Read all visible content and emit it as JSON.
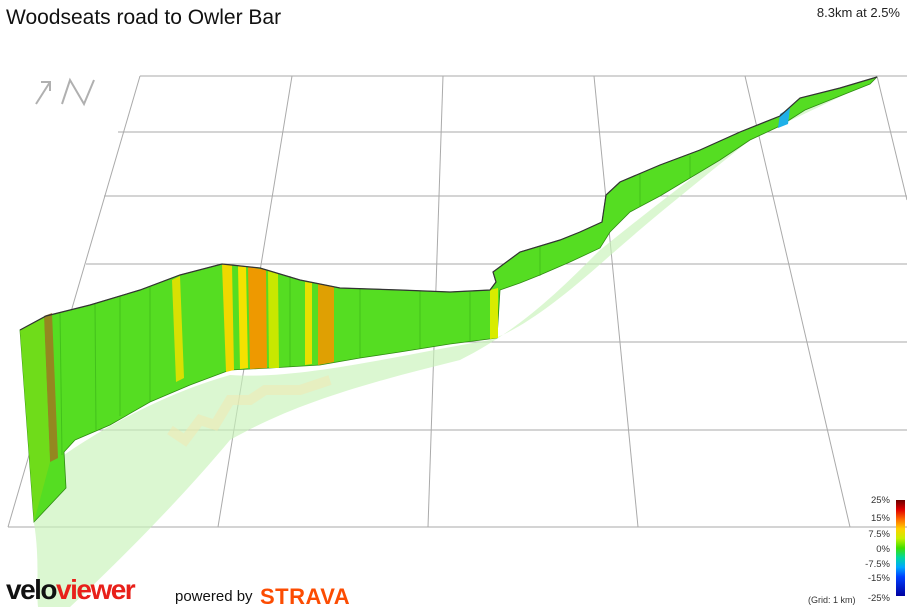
{
  "header": {
    "title": "Woodseats road to Owler Bar",
    "summary": "8.3km at 2.5%"
  },
  "compass": {
    "icon": "north-arrow-icon",
    "color": "#b0b0b0"
  },
  "legend": {
    "labels": [
      "25%",
      "15%",
      "7.5%",
      "0%",
      "-7.5%",
      "-15%",
      "-25%"
    ],
    "grid_note": "(Grid: 1 km)"
  },
  "footer": {
    "brand_part1": "velo",
    "brand_part2": "viewer",
    "powered_by": "powered by",
    "strava": "STRAVA"
  },
  "colors": {
    "grid": "#aaaaaa",
    "ribbon_main": "#55dd22",
    "steep_yellow": "#f0d800",
    "steep_orange": "#ee9900",
    "shadow": "#c8f2b8",
    "brand_red": "#e8201a",
    "strava_orange": "#fc4c02"
  }
}
